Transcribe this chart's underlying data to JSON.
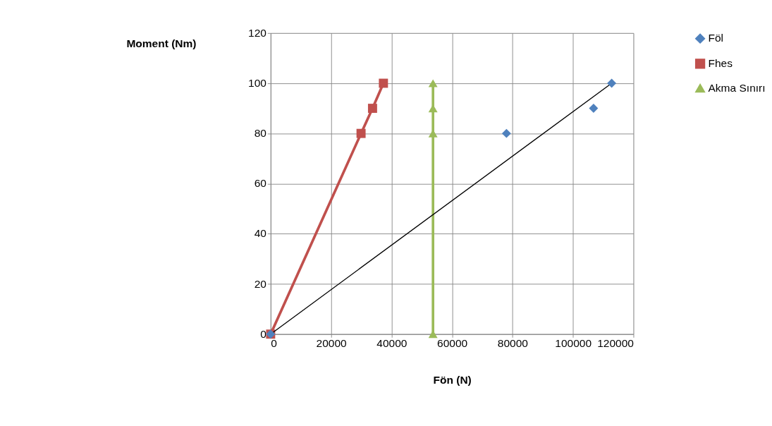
{
  "chart_data": {
    "type": "scatter",
    "xlabel": "Fön (N)",
    "ylabel": "Moment (Nm)",
    "xlim": [
      0,
      120000
    ],
    "xticks": [
      0,
      20000,
      40000,
      60000,
      80000,
      100000,
      120000
    ],
    "ylim": [
      0,
      120
    ],
    "yticks": [
      0,
      20,
      40,
      60,
      80,
      100,
      120
    ],
    "grid": true,
    "legend": "right",
    "series": [
      {
        "name": "Föl",
        "marker": "diamond",
        "color": "#4f81bd",
        "x": [
          0,
          78000,
          106800,
          112800
        ],
        "values": [
          0,
          80,
          90,
          100
        ]
      },
      {
        "name": "Fhes",
        "type": "line",
        "marker": "square",
        "color": "#c0504d",
        "x": [
          0,
          29900,
          33700,
          37300
        ],
        "values": [
          0,
          80,
          90,
          100
        ]
      },
      {
        "name": "Akma Sınırı",
        "type": "line",
        "marker": "triangle",
        "color": "#9bbb59",
        "x": [
          53700,
          53700,
          53700,
          53700
        ],
        "values": [
          0,
          80,
          90,
          100
        ]
      },
      {
        "type": "line",
        "marker": "none",
        "color": "#000000",
        "x": [
          0,
          112800
        ],
        "values": [
          0,
          100
        ]
      }
    ]
  }
}
